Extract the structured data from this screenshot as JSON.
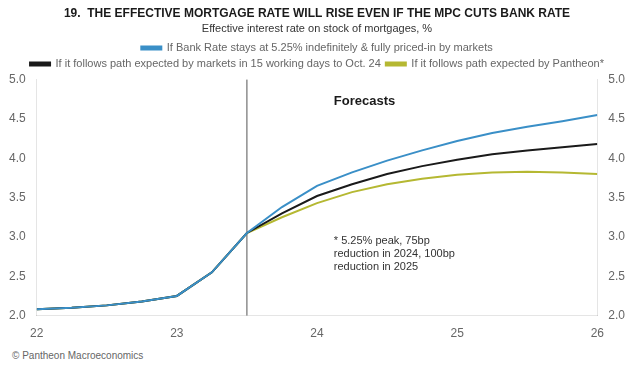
{
  "chart_data": {
    "type": "line",
    "title": "19.  THE EFFECTIVE MORTGAGE RATE WILL RISE EVEN IF THE MPC CUTS BANK RATE",
    "subtitle": "Effective interest rate on stock of mortgages, %",
    "x": [
      22.0,
      22.25,
      22.5,
      22.75,
      23.0,
      23.25,
      23.5,
      23.75,
      24.0,
      24.25,
      24.5,
      24.75,
      25.0,
      25.25,
      25.5,
      25.75,
      26.0
    ],
    "series": [
      {
        "name": "If Bank Rate stays at 5.25% indefinitely & fully priced-in by markets",
        "color": "#3a8fc7",
        "values": [
          2.08,
          2.1,
          2.13,
          2.18,
          2.25,
          2.55,
          3.05,
          3.38,
          3.65,
          3.82,
          3.97,
          4.1,
          4.22,
          4.32,
          4.4,
          4.47,
          4.55
        ]
      },
      {
        "name": "If it follows path expected by markets in 15 working days to Oct. 24",
        "color": "#1a1a1a",
        "values": [
          2.08,
          2.1,
          2.13,
          2.18,
          2.25,
          2.55,
          3.05,
          3.3,
          3.52,
          3.67,
          3.8,
          3.9,
          3.98,
          4.05,
          4.1,
          4.14,
          4.18
        ]
      },
      {
        "name": "If it follows path expected by Pantheon*",
        "color": "#b5b832",
        "values": [
          2.08,
          2.1,
          2.13,
          2.18,
          2.25,
          2.55,
          3.05,
          3.25,
          3.43,
          3.57,
          3.67,
          3.74,
          3.79,
          3.82,
          3.83,
          3.82,
          3.8
        ]
      }
    ],
    "xlim": [
      22,
      26
    ],
    "xticks": [
      22,
      23,
      24,
      25,
      26
    ],
    "ylim": [
      2.0,
      5.0
    ],
    "yticks": [
      {
        "value": 2.0,
        "label": "2.0"
      },
      2.5,
      {
        "value": 3.0,
        "label": "3.0"
      },
      3.5,
      {
        "value": 4.0,
        "label": "4.0"
      },
      4.5,
      {
        "value": 5.0,
        "label": "5.0"
      }
    ],
    "y2lim": [
      2.0,
      5.0
    ],
    "y2ticks": [
      {
        "value": 2.0,
        "label": "2.0"
      },
      2.5,
      {
        "value": 3.0,
        "label": "3.0"
      },
      3.5,
      {
        "value": 4.0,
        "label": "4.0"
      },
      4.5,
      {
        "value": 5.0,
        "label": "5.0"
      }
    ],
    "vline": 23.5,
    "annotations": [
      {
        "x": 24.12,
        "y": 4.72,
        "text": "Forecasts"
      },
      {
        "x": 24.12,
        "y": 2.78,
        "text": "* 5.25% peak, 75bp\nreduction in 2024, 100bp\nreduction in 2025"
      }
    ],
    "watermark": "© Pantheon Macroeconomics",
    "legend": "top",
    "grid": false
  }
}
